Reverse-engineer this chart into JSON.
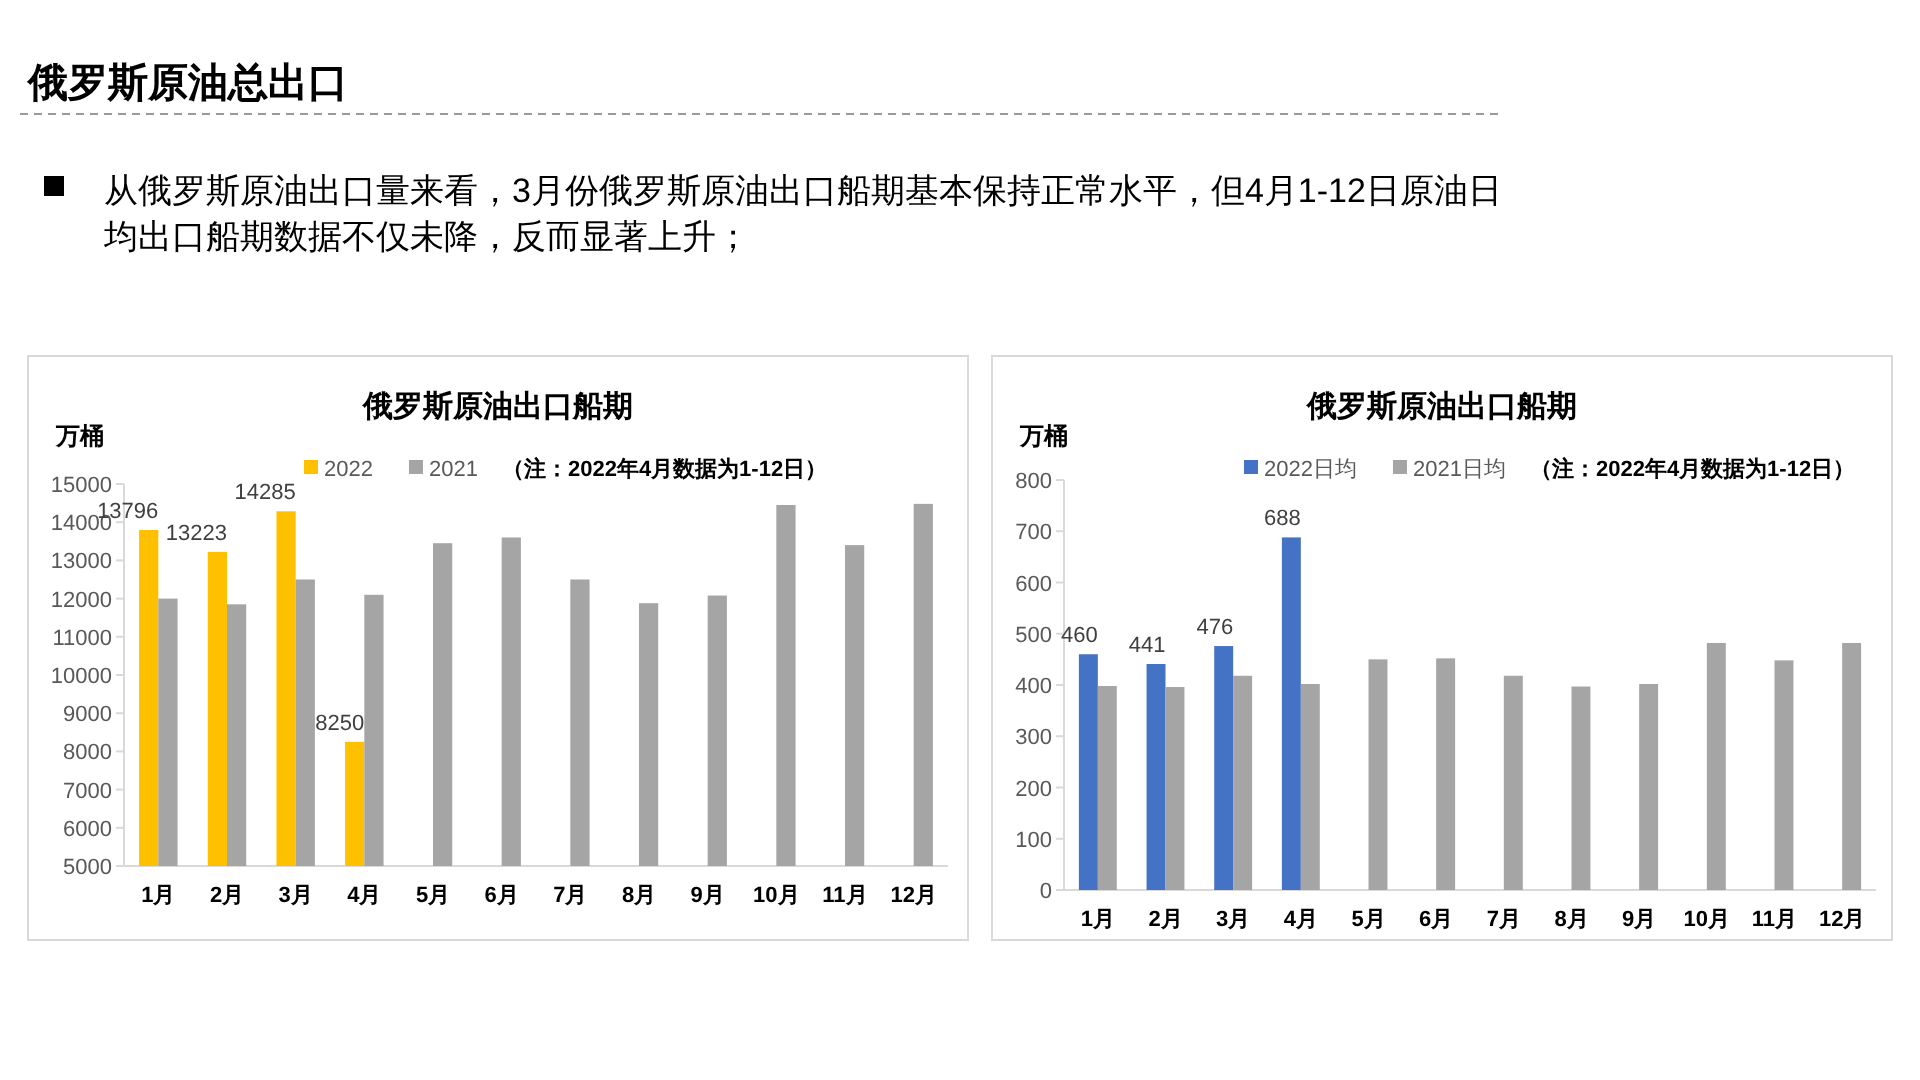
{
  "chart_data": [
    {
      "type": "other",
      "title": "俄罗斯原油总出口",
      "annotations": [
        "从俄罗斯原油出口量来看，3月份俄罗斯原油出口船期基本保持正常水平，但4月1-12日原油日均出口船期数据不仅未降，反而显著上升；"
      ]
    },
    {
      "type": "bar",
      "title": "俄罗斯原油出口船期",
      "ylabel": "万桶",
      "categories": [
        "1月",
        "2月",
        "3月",
        "4月",
        "5月",
        "6月",
        "7月",
        "8月",
        "9月",
        "10月",
        "11月",
        "12月"
      ],
      "series": [
        {
          "name": "2022",
          "color": "#ffc000",
          "values": [
            13796,
            13223,
            14285,
            8250,
            null,
            null,
            null,
            null,
            null,
            null,
            null,
            null
          ],
          "value_labels": [
            "13796",
            "13223",
            "14285",
            "8250",
            null,
            null,
            null,
            null,
            null,
            null,
            null,
            null
          ]
        },
        {
          "name": "2021",
          "color": "#a5a5a5",
          "values": [
            12000,
            11850,
            12500,
            12100,
            13450,
            13600,
            12500,
            11880,
            12080,
            14450,
            13400,
            14480
          ]
        }
      ],
      "ylim": [
        5000,
        15000
      ],
      "yticks": [
        5000,
        6000,
        7000,
        8000,
        9000,
        10000,
        11000,
        12000,
        13000,
        14000,
        15000
      ],
      "legend": "top",
      "grid": false,
      "annotations": [
        "（注：2022年4月数据为1-12日）"
      ]
    },
    {
      "type": "bar",
      "title": "俄罗斯原油出口船期",
      "ylabel": "万桶",
      "categories": [
        "1月",
        "2月",
        "3月",
        "4月",
        "5月",
        "6月",
        "7月",
        "8月",
        "9月",
        "10月",
        "11月",
        "12月"
      ],
      "series": [
        {
          "name": "2022日均",
          "color": "#4472c4",
          "values": [
            460,
            441,
            476,
            688,
            null,
            null,
            null,
            null,
            null,
            null,
            null,
            null
          ],
          "value_labels": [
            "460",
            "441",
            "476",
            "688",
            null,
            null,
            null,
            null,
            null,
            null,
            null,
            null
          ]
        },
        {
          "name": "2021日均",
          "color": "#a5a5a5",
          "values": [
            398,
            396,
            418,
            402,
            450,
            452,
            418,
            397,
            402,
            482,
            448,
            482
          ]
        }
      ],
      "ylim": [
        0,
        800
      ],
      "yticks": [
        0,
        100,
        200,
        300,
        400,
        500,
        600,
        700,
        800
      ],
      "legend": "top",
      "grid": false,
      "annotations": [
        "（注：2022年4月数据为1-12日）"
      ]
    }
  ]
}
